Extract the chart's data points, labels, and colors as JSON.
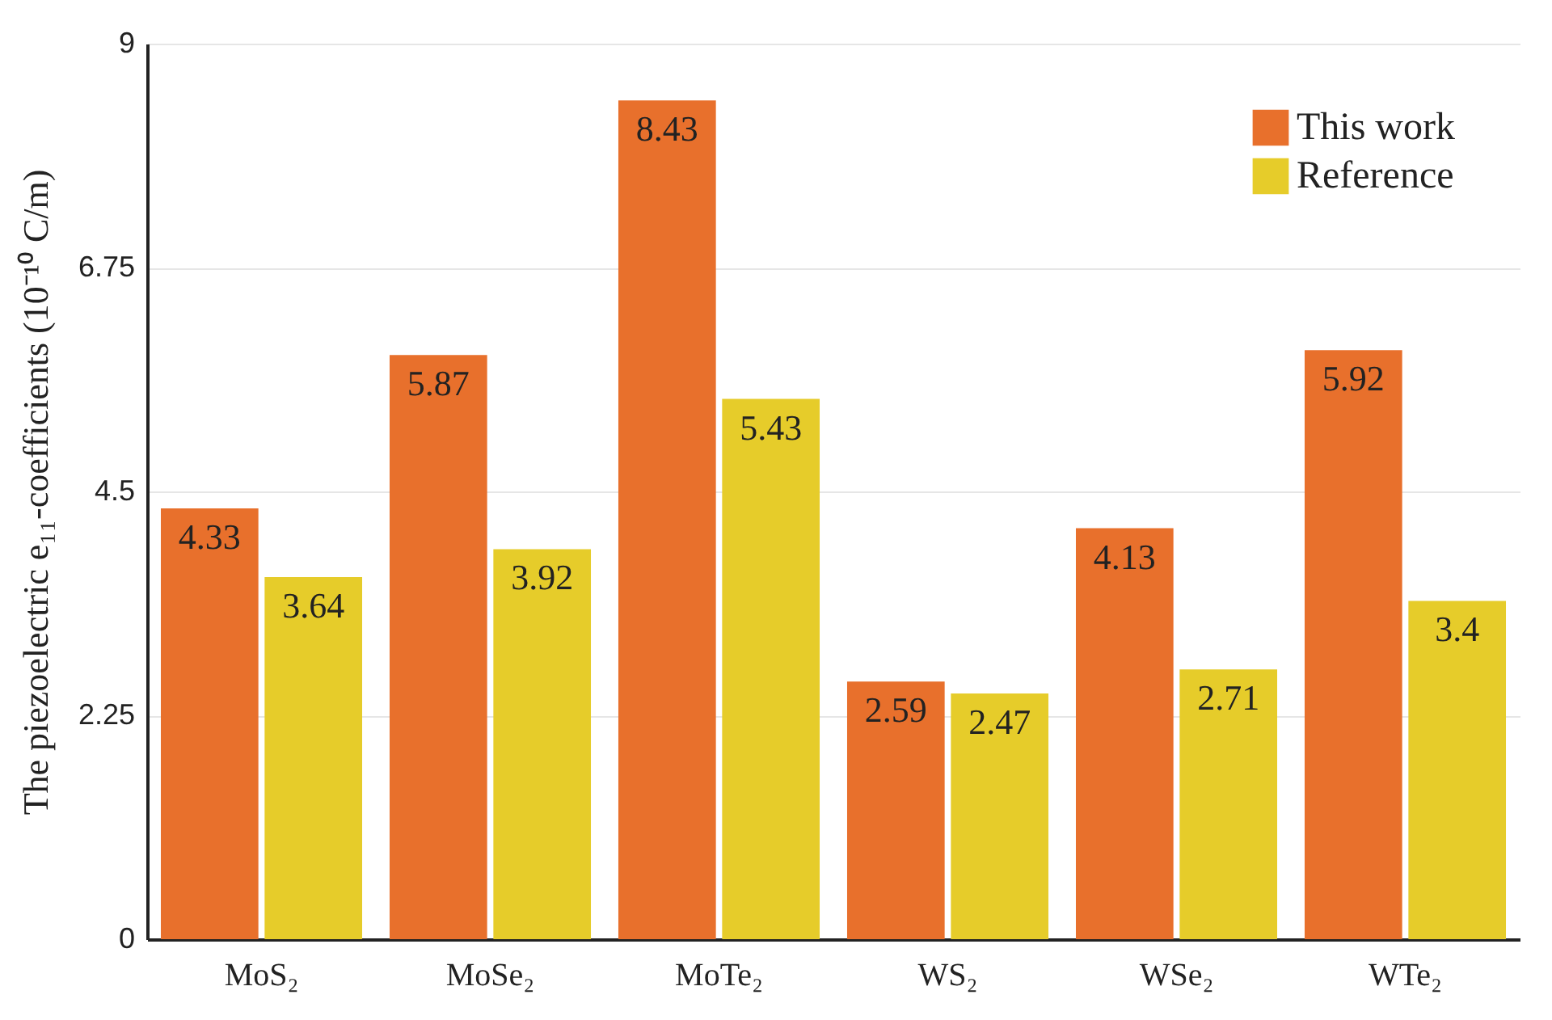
{
  "chart_data": {
    "type": "bar",
    "ylabel": "The piezoelectric e₁₁-coefficients (10⁻¹⁰ C/m)",
    "categories": [
      "MoS₂",
      "MoSe₂",
      "MoTe₂",
      "WS₂",
      "WSe₂",
      "WTe₂"
    ],
    "series": [
      {
        "name": "This work",
        "color": "#e8702c",
        "values": [
          4.33,
          5.87,
          8.43,
          2.59,
          4.13,
          5.92
        ]
      },
      {
        "name": "Reference",
        "color": "#e6cc2a",
        "values": [
          3.64,
          3.92,
          5.43,
          2.47,
          2.71,
          3.4
        ]
      }
    ],
    "ylim": [
      0,
      9
    ],
    "yticks": [
      0,
      2.25,
      4.5,
      6.75,
      9
    ],
    "grid": "y",
    "legend": "top right",
    "data_labels": true
  }
}
